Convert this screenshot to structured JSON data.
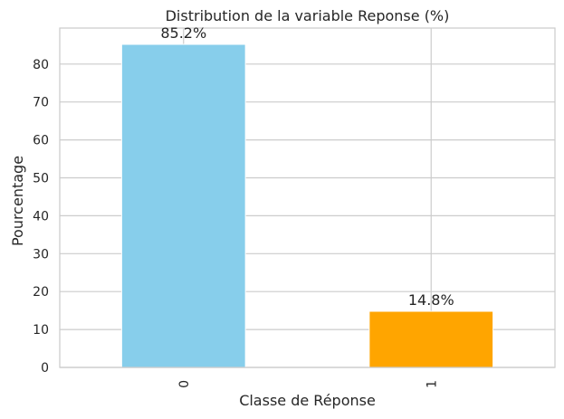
{
  "chart_data": {
    "type": "bar",
    "title": "Distribution de la variable Reponse (%)",
    "xlabel": "Classe de Réponse",
    "ylabel": "Pourcentage",
    "categories": [
      "0",
      "1"
    ],
    "values": [
      85.2,
      14.8
    ],
    "data_labels": [
      "85.2%",
      "14.8%"
    ],
    "colors": [
      "#87CEEB",
      "#FFA500"
    ],
    "ylim": [
      0,
      89.5
    ],
    "yticks": [
      0,
      10,
      20,
      30,
      40,
      50,
      60,
      70,
      80
    ],
    "grid": true,
    "legend": "none"
  }
}
